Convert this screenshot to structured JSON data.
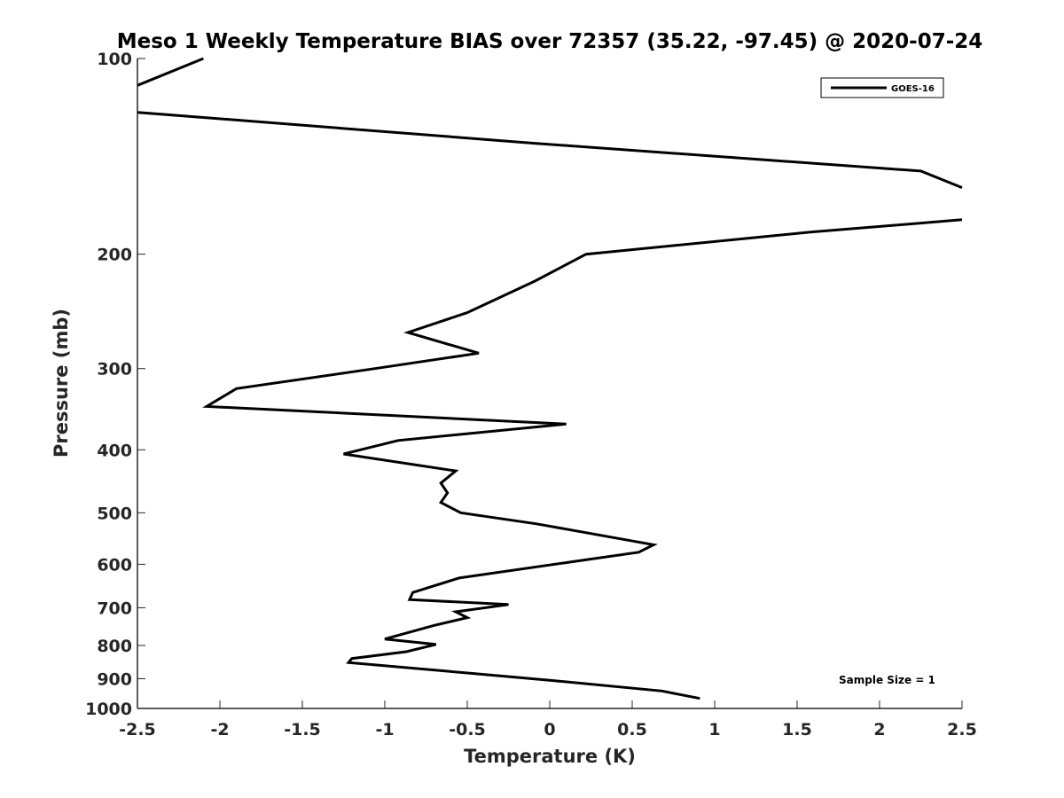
{
  "chart_data": {
    "type": "line",
    "title": "Meso 1 Weekly Temperature BIAS over 72357 (35.22, -97.45) @ 2020-07-24",
    "xlabel": "Temperature (K)",
    "ylabel": "Pressure (mb)",
    "xlim": [
      -2.5,
      2.5
    ],
    "ylim": [
      100,
      1000
    ],
    "y_scale": "log",
    "y_reversed": true,
    "xticks": [
      -2.5,
      -2,
      -1.5,
      -1,
      -0.5,
      0,
      0.5,
      1,
      1.5,
      2,
      2.5
    ],
    "xtick_labels": [
      "-2.5",
      "-2",
      "-1.5",
      "-1",
      "-0.5",
      "0",
      "0.5",
      "1",
      "1.5",
      "2",
      "2.5"
    ],
    "yticks": [
      100,
      200,
      300,
      400,
      500,
      600,
      700,
      800,
      900,
      1000
    ],
    "ytick_labels": [
      "100",
      "200",
      "300",
      "400",
      "500",
      "600",
      "700",
      "800",
      "900",
      "1000"
    ],
    "grid": false,
    "legend_position": "top-right",
    "annotation": "Sample Size = 1",
    "series": [
      {
        "name": "GOES-16",
        "color": "#000000",
        "segments": [
          {
            "x": [
              -2.1,
              -2.5
            ],
            "y": [
              100,
              110
            ]
          },
          {
            "x": [
              -2.5,
              -0.1,
              2.25,
              2.5
            ],
            "y": [
              121,
              135,
              149,
              158
            ]
          },
          {
            "x": [
              2.5,
              1.58,
              0.22,
              -0.09,
              -0.5,
              -0.86,
              -0.43,
              -1.06,
              -1.9,
              -2.08,
              0.1,
              -0.92,
              -1.25,
              -0.57,
              -0.66,
              -0.62,
              -0.66,
              -0.54,
              -0.08,
              0.63,
              0.54,
              -0.55,
              -0.83,
              -0.85,
              -0.25,
              -0.57,
              -0.5,
              -0.7,
              -1.0,
              -0.69,
              -0.87,
              -1.2,
              -1.22,
              -0.5,
              0.0,
              0.68,
              0.91
            ],
            "y": [
              177,
              185,
              200,
              220,
              246,
              264,
              284,
              300,
              322,
              343,
              365,
              387,
              406,
              431,
              450,
              466,
              482,
              500,
              520,
              560,
              575,
              630,
              663,
              680,
              692,
              710,
              725,
              745,
              782,
              797,
              818,
              838,
              850,
              882,
              905,
              940,
              965
            ]
          }
        ]
      }
    ]
  }
}
